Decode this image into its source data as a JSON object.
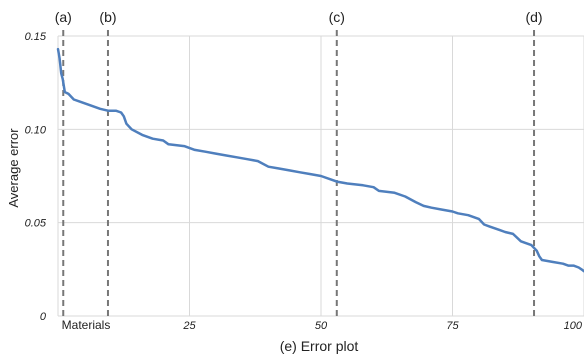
{
  "chart_data": {
    "type": "line",
    "title": "",
    "caption": "(e) Error plot",
    "xlabel": "Materials",
    "ylabel": "Average error",
    "xlim": [
      0,
      100
    ],
    "ylim": [
      0,
      0.15
    ],
    "x_ticks": [
      "25",
      "50",
      "75",
      "100"
    ],
    "x_tick_values": [
      25,
      50,
      75,
      100
    ],
    "y_ticks": [
      "0",
      "0.05",
      "0.10",
      "0.15"
    ],
    "y_tick_values": [
      0,
      0.05,
      0.1,
      0.15
    ],
    "grid": true,
    "line_color": "#4f7fbd",
    "marker_color": "#777777",
    "markers": [
      {
        "label": "(a)",
        "x": 1
      },
      {
        "label": "(b)",
        "x": 9.5
      },
      {
        "label": "(c)",
        "x": 53
      },
      {
        "label": "(d)",
        "x": 90.5
      }
    ],
    "series": [
      {
        "x": [
          0,
          0.3,
          0.6,
          0.9,
          1.3,
          2,
          3,
          4,
          6,
          8,
          9.5,
          11,
          12,
          12.5,
          13,
          14,
          16,
          18,
          20,
          21,
          24,
          26,
          28,
          30,
          32,
          34,
          36,
          38,
          40,
          42,
          44,
          46,
          48,
          50,
          52,
          53,
          55,
          58,
          60,
          61,
          64,
          66,
          68,
          69.5,
          71,
          73,
          75,
          76,
          78,
          80,
          81,
          82,
          84,
          85,
          86.5,
          88,
          89,
          90,
          91,
          91.5,
          92,
          94,
          96,
          97,
          98,
          99,
          99.5,
          100
        ],
        "y": [
          0.143,
          0.138,
          0.13,
          0.127,
          0.12,
          0.119,
          0.116,
          0.115,
          0.113,
          0.111,
          0.11,
          0.11,
          0.109,
          0.107,
          0.103,
          0.1,
          0.097,
          0.095,
          0.094,
          0.092,
          0.091,
          0.089,
          0.088,
          0.087,
          0.086,
          0.085,
          0.084,
          0.083,
          0.08,
          0.079,
          0.078,
          0.077,
          0.076,
          0.075,
          0.073,
          0.072,
          0.071,
          0.07,
          0.069,
          0.067,
          0.066,
          0.064,
          0.061,
          0.059,
          0.058,
          0.057,
          0.056,
          0.055,
          0.054,
          0.052,
          0.049,
          0.048,
          0.046,
          0.045,
          0.044,
          0.04,
          0.039,
          0.038,
          0.035,
          0.032,
          0.03,
          0.029,
          0.028,
          0.027,
          0.027,
          0.026,
          0.025,
          0.024
        ]
      }
    ]
  }
}
